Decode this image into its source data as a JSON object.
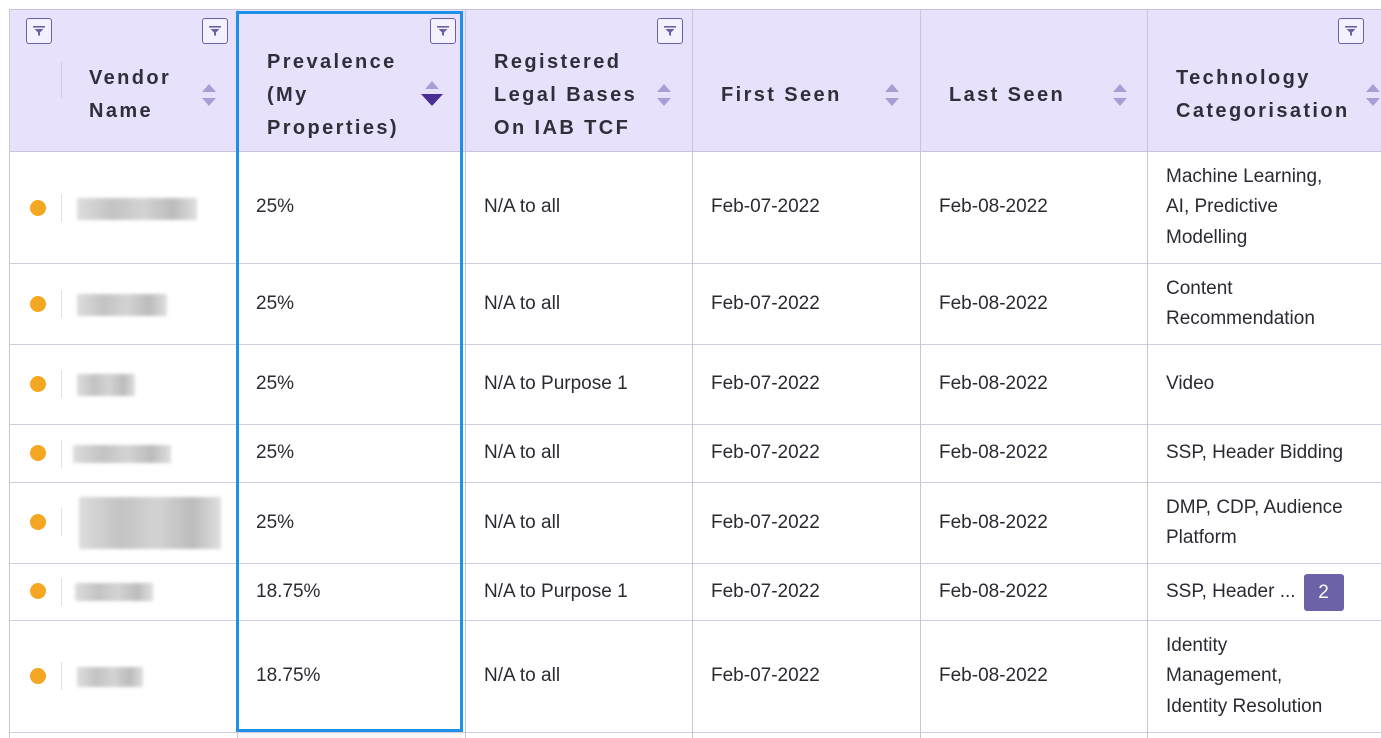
{
  "colors": {
    "header_bg": "#e8e1fb",
    "accent": "#6b5fa8",
    "status_dot": "#f5a623",
    "selected_column_border": "#1e90e6",
    "badge_bg": "#6b62a8"
  },
  "columns": {
    "vendor_name": {
      "line1": "Vendor",
      "line2": "Name"
    },
    "prevalence": {
      "line1": "Prevalence",
      "line2": "(My",
      "line3": "Properties)"
    },
    "legal_bases": {
      "line1": "Registered",
      "line2": "Legal Bases",
      "line3": "On IAB TCF"
    },
    "first_seen": {
      "line1": "First Seen"
    },
    "last_seen": {
      "line1": "Last Seen"
    },
    "technology": {
      "line1": "Technology",
      "line2": "Categorisation"
    }
  },
  "icons": {
    "filter": "filter-funnel-icon",
    "sort": "sort-up-down-icon",
    "sort_active": "sort-descending-icon"
  },
  "rows": [
    {
      "prevalence": "25%",
      "legal": "N/A to all",
      "first_seen": "Feb-07-2022",
      "last_seen": "Feb-08-2022",
      "tech_lines": [
        "Machine Learning,",
        "AI, Predictive",
        "Modelling"
      ]
    },
    {
      "prevalence": "25%",
      "legal": "N/A to all",
      "first_seen": "Feb-07-2022",
      "last_seen": "Feb-08-2022",
      "tech_lines": [
        "Content",
        "Recommendation"
      ]
    },
    {
      "prevalence": "25%",
      "legal": "N/A to Purpose 1",
      "first_seen": "Feb-07-2022",
      "last_seen": "Feb-08-2022",
      "tech_lines": [
        "Video"
      ]
    },
    {
      "prevalence": "25%",
      "legal": "N/A to all",
      "first_seen": "Feb-07-2022",
      "last_seen": "Feb-08-2022",
      "tech_lines": [
        "SSP, Header Bidding"
      ]
    },
    {
      "prevalence": "25%",
      "legal": "N/A to all",
      "first_seen": "Feb-07-2022",
      "last_seen": "Feb-08-2022",
      "tech_lines": [
        "DMP, CDP, Audience",
        "Platform"
      ]
    },
    {
      "prevalence": "18.75%",
      "legal": "N/A to Purpose 1",
      "first_seen": "Feb-07-2022",
      "last_seen": "Feb-08-2022",
      "tech_lines": [
        "SSP, Header ..."
      ],
      "tech_more": "2"
    },
    {
      "prevalence": "18.75%",
      "legal": "N/A to all",
      "first_seen": "Feb-07-2022",
      "last_seen": "Feb-08-2022",
      "tech_lines": [
        "Identity",
        "Management,",
        "Identity Resolution"
      ]
    }
  ]
}
